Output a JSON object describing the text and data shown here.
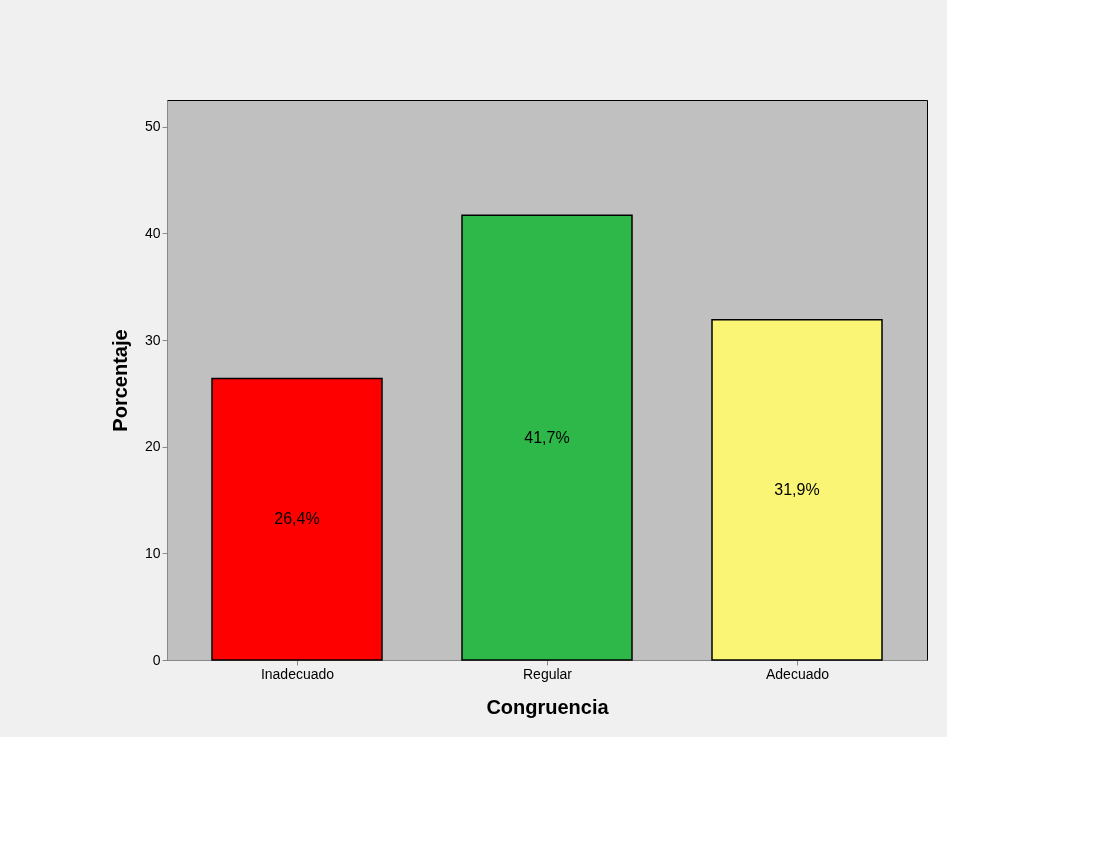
{
  "chart_data": {
    "type": "bar",
    "xlabel": "Congruencia",
    "ylabel": "Porcentaje",
    "categories": [
      "Inadecuado",
      "Regular",
      "Adecuado"
    ],
    "values": [
      26.4,
      41.7,
      31.9
    ],
    "colors": [
      "#ff0000",
      "#2eb84a",
      "#faf575"
    ],
    "value_labels": [
      "26,4%",
      "41,7%",
      "31,9%"
    ],
    "ylim": [
      0,
      52.5
    ],
    "yticks": [
      0,
      10,
      20,
      30,
      40,
      50
    ],
    "grid": false
  }
}
